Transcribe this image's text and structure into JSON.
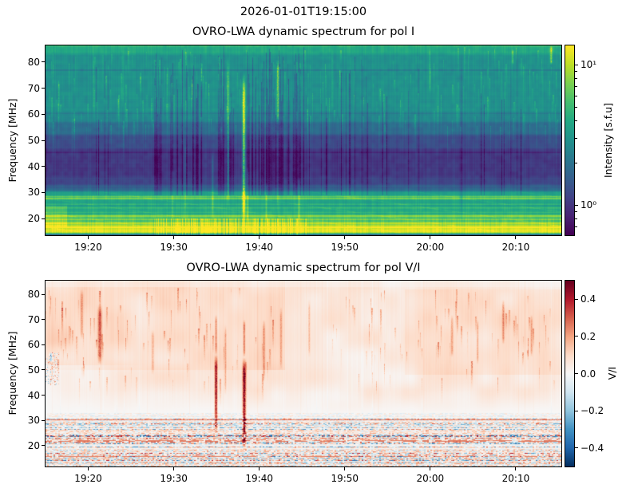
{
  "figure": {
    "suptitle": "2026-01-01T19:15:00",
    "background": "#ffffff",
    "text_color": "#000000"
  },
  "panels": [
    {
      "title": "OVRO-LWA dynamic spectrum for pol I",
      "ylabel": "Frequency [MHz]",
      "x_axis": {
        "start_time": "19:15",
        "end_time": "20:15",
        "range_minutes": [
          0,
          60.33
        ],
        "ticks": [
          {
            "v": 5,
            "label": "19:20"
          },
          {
            "v": 15,
            "label": "19:30"
          },
          {
            "v": 25,
            "label": "19:40"
          },
          {
            "v": 35,
            "label": "19:50"
          },
          {
            "v": 45,
            "label": "20:00"
          },
          {
            "v": 55,
            "label": "20:10"
          }
        ]
      },
      "y_axis": {
        "range_mhz": [
          13.6,
          86.4
        ],
        "ticks": [
          {
            "v": 80,
            "label": "80"
          },
          {
            "v": 70,
            "label": "70"
          },
          {
            "v": 60,
            "label": "60"
          },
          {
            "v": 50,
            "label": "50"
          },
          {
            "v": 40,
            "label": "40"
          },
          {
            "v": 30,
            "label": "30"
          },
          {
            "v": 20,
            "label": "20"
          }
        ]
      },
      "colorbar": {
        "label": "Intensity [s.f.u]",
        "scale": "log",
        "range": [
          0.61,
          13.7
        ],
        "colormap": "viridis",
        "ticks": [
          {
            "v": 10,
            "label": "10¹"
          },
          {
            "v": 1,
            "label": "10⁰"
          }
        ],
        "minor_ticks": [
          0.7,
          0.8,
          0.9,
          2,
          3,
          4,
          5,
          6,
          7,
          8,
          9
        ]
      }
    },
    {
      "title": "OVRO-LWA dynamic spectrum for pol V/I",
      "ylabel": "Frequency [MHz]",
      "x_axis": {
        "start_time": "19:15",
        "end_time": "20:15",
        "range_minutes": [
          0,
          60.33
        ],
        "ticks": [
          {
            "v": 5,
            "label": "19:20"
          },
          {
            "v": 15,
            "label": "19:30"
          },
          {
            "v": 25,
            "label": "19:40"
          },
          {
            "v": 35,
            "label": "19:50"
          },
          {
            "v": 45,
            "label": "20:00"
          },
          {
            "v": 55,
            "label": "20:10"
          }
        ]
      },
      "y_axis": {
        "range_mhz": [
          11.7,
          85.4
        ],
        "ticks": [
          {
            "v": 80,
            "label": "80"
          },
          {
            "v": 70,
            "label": "70"
          },
          {
            "v": 60,
            "label": "60"
          },
          {
            "v": 50,
            "label": "50"
          },
          {
            "v": 40,
            "label": "40"
          },
          {
            "v": 30,
            "label": "30"
          },
          {
            "v": 20,
            "label": "20"
          }
        ]
      },
      "colorbar": {
        "label": "V/I",
        "scale": "linear",
        "range": [
          -0.5,
          0.5
        ],
        "colormap": "RdBu_r",
        "ticks": [
          {
            "v": 0.4,
            "label": "0.4"
          },
          {
            "v": 0.2,
            "label": "0.2"
          },
          {
            "v": 0.0,
            "label": "0.0"
          },
          {
            "v": -0.2,
            "label": "−0.2"
          },
          {
            "v": -0.4,
            "label": "−0.4"
          }
        ],
        "minor_ticks": []
      }
    }
  ],
  "chart_data": [
    {
      "type": "heatmap",
      "title": "OVRO-LWA dynamic spectrum for pol I",
      "x_range": [
        "19:15",
        "20:15"
      ],
      "y_range_mhz": [
        13.6,
        86.4
      ],
      "value_label": "Intensity [s.f.u]",
      "value_scale": "log",
      "value_range_sfu": [
        0.6,
        13.7
      ],
      "colormap": "viridis",
      "description": "Quiet teal background 55-86 MHz, dark purple band 33-52 MHz, bright green band 24-31 MHz, saturated yellow galactic/RFI band below 22 MHz; dense vertical RFI striations 19:28-19:45; strong type-III-like yellow burst at 19:38; dark column at 20:03",
      "render": {
        "bands": [
          [
            86.4,
            83,
            0.6
          ],
          [
            83,
            61,
            0.5
          ],
          [
            61,
            57,
            0.46
          ],
          [
            57,
            52,
            0.36
          ],
          [
            52,
            47,
            0.24
          ],
          [
            47,
            41,
            0.17
          ],
          [
            41,
            36,
            0.165
          ],
          [
            36,
            33,
            0.21
          ],
          [
            33,
            30.5,
            0.33
          ],
          [
            30.5,
            28.8,
            0.55
          ],
          [
            28.8,
            27.2,
            0.68
          ],
          [
            27.2,
            24.5,
            0.56
          ],
          [
            24.5,
            21.5,
            0.6
          ],
          [
            21.5,
            18.5,
            0.72
          ],
          [
            18.5,
            17.3,
            0.82
          ],
          [
            17.3,
            14.3,
            0.95
          ],
          [
            14.3,
            13.6,
            0.3
          ]
        ],
        "bright_hlines": [
          [
            28.4,
            0.12
          ],
          [
            27.7,
            0.1
          ],
          [
            25.6,
            0.08
          ],
          [
            23.9,
            0.07
          ],
          [
            22.3,
            0.08
          ],
          [
            20.9,
            0.12
          ],
          [
            19.6,
            0.1
          ],
          [
            18.1,
            0.1
          ],
          [
            16.6,
            0.07
          ],
          [
            15.6,
            0.06
          ]
        ],
        "dark_hlines": [
          [
            83.5,
            0.04
          ],
          [
            77,
            0.07
          ],
          [
            60.5,
            0.04
          ],
          [
            45.5,
            0.06
          ],
          [
            31.8,
            0.05
          ]
        ],
        "vstreaks": [
          [
            23.15,
            17,
            76,
            0.55,
            1.6
          ],
          [
            23.6,
            17,
            40,
            0.16,
            1.0
          ],
          [
            21.3,
            24,
            82,
            0.26,
            1.4
          ],
          [
            27.1,
            56,
            81,
            0.3,
            1.4
          ],
          [
            27.1,
            22,
            56,
            0.1,
            1.0
          ],
          [
            19.5,
            20,
            46,
            0.14,
            1.0
          ],
          [
            16.3,
            20,
            52,
            0.12,
            1.0
          ],
          [
            29.6,
            17,
            36,
            0.16,
            1.0
          ],
          [
            25.8,
            18,
            34,
            0.12,
            1.0
          ],
          [
            14.8,
            18,
            40,
            0.1,
            1.0
          ],
          [
            48.6,
            16,
            85,
            -0.1,
            1.4
          ],
          [
            54.4,
            30,
            80,
            -0.07,
            1.0
          ],
          [
            59.1,
            79,
            86.4,
            0.3,
            1.4
          ],
          [
            54.6,
            79,
            85,
            0.2,
            1.0
          ],
          [
            44.9,
            68,
            86,
            0.12,
            1.0
          ],
          [
            5.6,
            58,
            84,
            0.1,
            1.0
          ],
          [
            9.0,
            62,
            86,
            0.09,
            1.0
          ],
          [
            33.5,
            60,
            86,
            0.1,
            1.0
          ]
        ],
        "noise": {
          "col_amp": 0.045,
          "row_amp": 0.04,
          "wisp_count": 260,
          "rfi_zone_minutes": [
            12.5,
            30.5
          ],
          "rfi_density": 0.45,
          "rfi_amp": 0.16,
          "scatter_density": 0.07,
          "bottom_flicker": 0.15,
          "diag_amp": 0.035
        }
      }
    },
    {
      "type": "heatmap",
      "title": "OVRO-LWA dynamic spectrum for pol V/I",
      "x_range": [
        "19:15",
        "20:15"
      ],
      "y_range_mhz": [
        11.7,
        85.4
      ],
      "value_label": "V/I",
      "value_scale": "linear",
      "value_range": [
        -0.5,
        0.5
      ],
      "colormap": "RdBu_r",
      "description": "Pale positive (red) circular polarization fraction ~+0.05 to +0.15 above 40 MHz with red burst streaks near 19:21, 19:35 and 19:38; near-zero white band 33-42 MHz; speckled red/blue noise below 33 MHz",
      "render": {
        "base": 0.052,
        "regions": [
          {
            "t": [
              0,
              28
            ],
            "f": [
              50,
              86
            ],
            "amp": 0.055
          },
          {
            "t": [
              42,
              60.4
            ],
            "f": [
              48,
              82
            ],
            "amp": 0.04
          }
        ],
        "taper_f": [
          32.8,
          42
        ],
        "wedge": {
          "t_max": 12,
          "f_max": 52
        },
        "hline": [
          30.2,
          0.22
        ],
        "vstreaks": [
          [
            6.3,
            52,
            76,
            0.22,
            2.0
          ],
          [
            4.2,
            62,
            82,
            0.12,
            1.5
          ],
          [
            12.5,
            48,
            66,
            0.1,
            1.5
          ],
          [
            19.9,
            24,
            56,
            0.38,
            1.5
          ],
          [
            19.9,
            56,
            72,
            0.15,
            1.0
          ],
          [
            23.2,
            17,
            55,
            0.42,
            1.8
          ],
          [
            23.2,
            55,
            70,
            0.18,
            1.0
          ],
          [
            21.0,
            40,
            68,
            0.12,
            1.0
          ],
          [
            25.5,
            45,
            70,
            0.14,
            1.2
          ],
          [
            27.5,
            50,
            75,
            0.12,
            1.0
          ],
          [
            30.8,
            55,
            78,
            0.1,
            1.0
          ],
          [
            47.5,
            55,
            72,
            0.12,
            1.2
          ],
          [
            50.5,
            52,
            70,
            0.12,
            1.0
          ],
          [
            53.5,
            60,
            78,
            0.14,
            1.2
          ],
          [
            56.8,
            55,
            72,
            0.12,
            1.0
          ],
          [
            0.6,
            53,
            57,
            -0.25,
            1.2
          ]
        ],
        "noise_bands": [
          [
            33,
            30.6,
            0.1,
            0.0
          ],
          [
            30.6,
            28.6,
            0.26,
            0.02
          ],
          [
            28.6,
            26.2,
            0.2,
            -0.02
          ],
          [
            26.2,
            24.6,
            0.12,
            0.05
          ],
          [
            24.6,
            23.0,
            0.28,
            0.0
          ],
          [
            23.0,
            21.2,
            0.24,
            0.08
          ],
          [
            21.2,
            19.2,
            0.28,
            -0.03
          ],
          [
            19.2,
            17.2,
            0.16,
            0.03
          ],
          [
            17.2,
            15.8,
            0.26,
            0.06
          ],
          [
            15.8,
            13.8,
            0.28,
            0.0
          ],
          [
            13.8,
            11.7,
            0.22,
            0.02
          ]
        ],
        "run_rows": [
          21.9,
          15.6
        ],
        "wisp_count": 170
      }
    }
  ]
}
